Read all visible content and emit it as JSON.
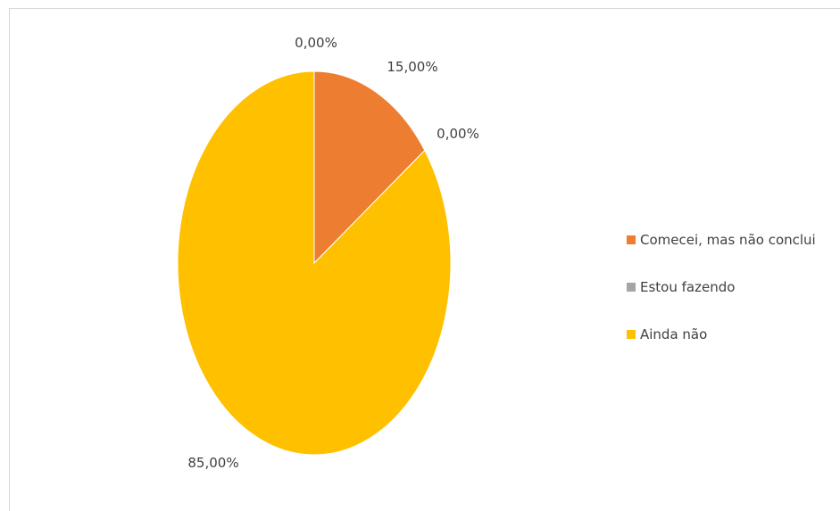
{
  "chart_data": {
    "type": "pie",
    "categories": [
      "Comecei, mas não conclui",
      "Estou fazendo",
      "Ainda não"
    ],
    "values": [
      15,
      0,
      85
    ],
    "data_labels": [
      "15,00%",
      "0,00%",
      "85,00%"
    ],
    "zero_label_top": "0,00%",
    "colors": [
      "#ED7D31",
      "#A5A5A5",
      "#FFC000"
    ],
    "legend_position": "right",
    "title": ""
  }
}
